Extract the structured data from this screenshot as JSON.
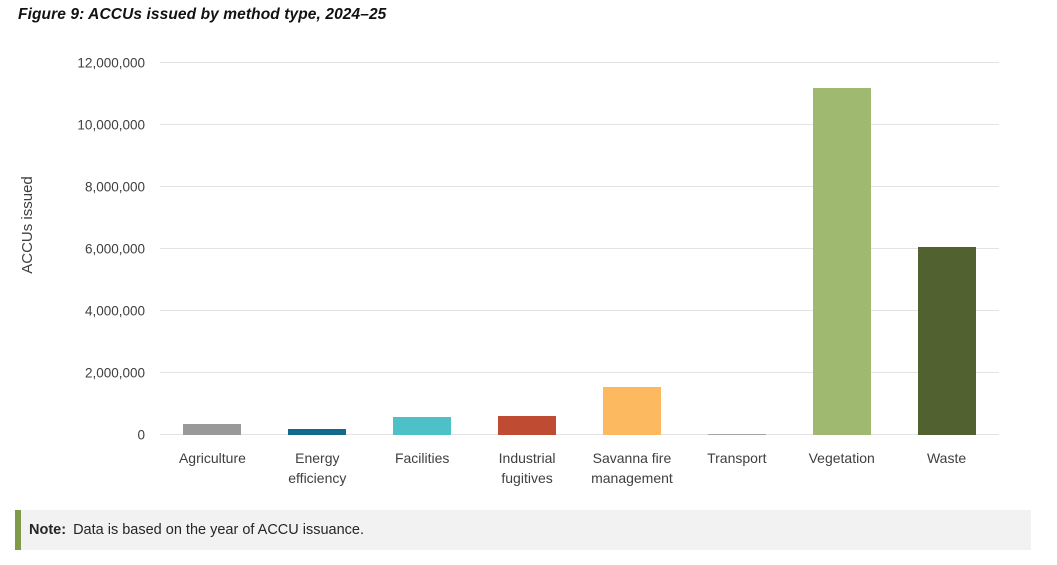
{
  "chart_data": {
    "type": "bar",
    "title": "Figure 9: ACCUs issued by method type, 2024–25",
    "xlabel": "",
    "ylabel": "ACCUs issued",
    "ylim": [
      0,
      12000000
    ],
    "grid": true,
    "legend": false,
    "ytick_values": [
      0,
      2000000,
      4000000,
      6000000,
      8000000,
      10000000,
      12000000
    ],
    "ytick_labels": [
      "0",
      "2,000,000",
      "4,000,000",
      "6,000,000",
      "8,000,000",
      "10,000,000",
      "12,000,000"
    ],
    "categories": [
      "Agriculture",
      "Energy efficiency",
      "Facilities",
      "Industrial fugitives",
      "Savanna fire management",
      "Transport",
      "Vegetation",
      "Waste"
    ],
    "values": [
      350000,
      180000,
      570000,
      600000,
      1550000,
      40000,
      11200000,
      6050000
    ],
    "bar_colors": [
      "#999999",
      "#11698c",
      "#4ec0c8",
      "#c04b33",
      "#fcb960",
      "#a6a6a6",
      "#a0b971",
      "#516230"
    ]
  },
  "note": {
    "label": "Note:",
    "text": "Data is based on the year of ACCU issuance.",
    "accent_color": "#7e9b49",
    "background_color": "#f2f2f2"
  }
}
